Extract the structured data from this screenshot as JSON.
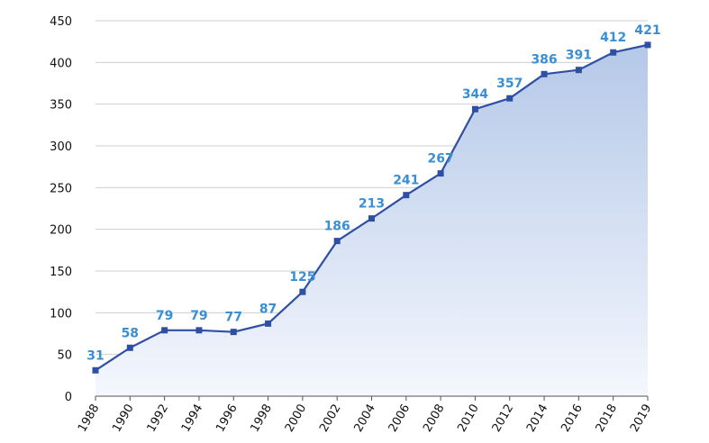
{
  "chart_data": {
    "type": "area",
    "title": "",
    "xlabel": "",
    "ylabel": "",
    "x": [
      "1988",
      "1990",
      "1992",
      "1994",
      "1996",
      "1998",
      "2000",
      "2002",
      "2004",
      "2006",
      "2008",
      "2010",
      "2012",
      "2014",
      "2016",
      "2018",
      "2019"
    ],
    "series": [
      {
        "values": [
          31,
          58,
          79,
          79,
          77,
          87,
          125,
          186,
          213,
          241,
          267,
          344,
          357,
          386,
          391,
          412,
          421
        ]
      }
    ],
    "ylim": [
      0,
      450
    ],
    "yticks": [
      0,
      50,
      100,
      150,
      200,
      250,
      300,
      350,
      400,
      450
    ],
    "grid": true,
    "data_labels": true,
    "colors": {
      "line": "#2f4fa3",
      "marker": "#2f4fa3",
      "fill_top": "#b4c8e8",
      "fill_bottom": "#f4f7fd",
      "data_label": "#3a8fd4",
      "grid": "#cfcfcf"
    }
  }
}
